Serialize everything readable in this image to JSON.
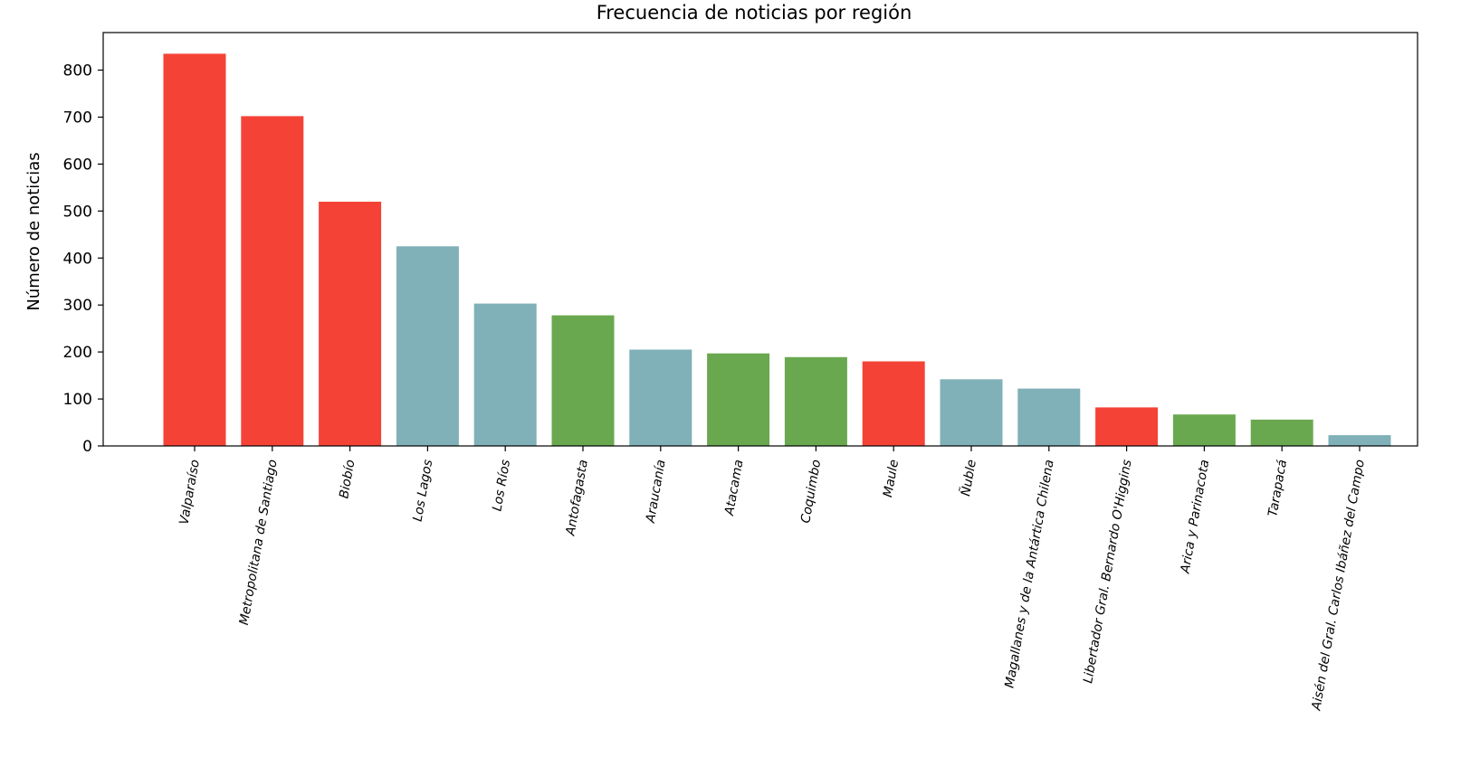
{
  "chart_data": {
    "type": "bar",
    "title": "Frecuencia de noticias por región",
    "xlabel": "",
    "ylabel": "Número de noticias",
    "ylim": [
      0,
      880
    ],
    "yticks": [
      0,
      100,
      200,
      300,
      400,
      500,
      600,
      700,
      800
    ],
    "grid": false,
    "colors": {
      "red": "#f44336",
      "teal": "#80b0b8",
      "green": "#6aa84f"
    },
    "categories": [
      "Valparaíso",
      "Metropolitana de Santiago",
      "Biobío",
      "Los Lagos",
      "Los Ríos",
      "Antofagasta",
      "Araucanía",
      "Atacama",
      "Coquimbo",
      "Maule",
      "Ñuble",
      "Magallanes y de la Antártica Chilena",
      "Libertador Gral. Bernardo O'Higgins",
      "Arica y Parinacota",
      "Tarapacá",
      "Aisén del Gral. Carlos Ibáñez del Campo"
    ],
    "values": [
      835,
      702,
      520,
      425,
      303,
      278,
      205,
      197,
      189,
      180,
      142,
      122,
      82,
      67,
      56,
      23
    ],
    "bar_colors": [
      "#f44336",
      "#f44336",
      "#f44336",
      "#80b0b8",
      "#80b0b8",
      "#6aa84f",
      "#80b0b8",
      "#6aa84f",
      "#6aa84f",
      "#f44336",
      "#80b0b8",
      "#80b0b8",
      "#f44336",
      "#6aa84f",
      "#6aa84f",
      "#80b0b8"
    ]
  }
}
